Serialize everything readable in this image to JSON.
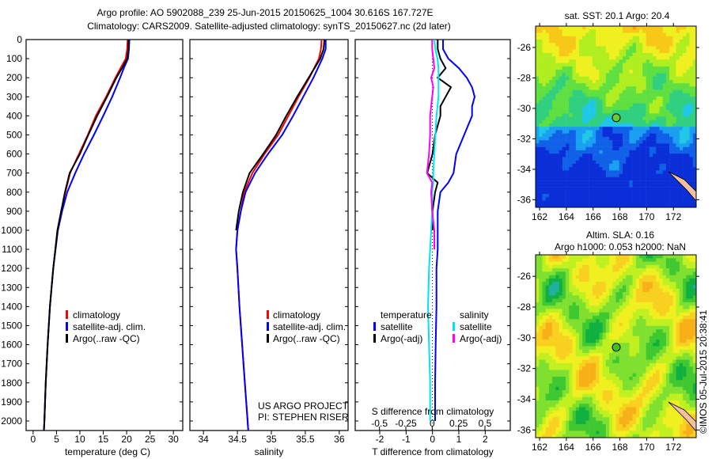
{
  "title": {
    "line1": "Argo profile: AO 5902088_239 25-Jun-2015 20150625_1004 30.616S 167.727E",
    "line2": "Climatology: CARS2009. Satellite-adjusted climatology: synTS_20150627.nc (2d later)"
  },
  "colors": {
    "climatology": "#ff0000",
    "satellite": "#0000ff",
    "argo": "#000000",
    "s_satellite": "#00e5ee",
    "s_argo": "#ff00ff"
  },
  "depth_ticks": [
    "0",
    "100",
    "200",
    "300",
    "400",
    "500",
    "600",
    "700",
    "800",
    "900",
    "1000",
    "1100",
    "1200",
    "1300",
    "1400",
    "1500",
    "1600",
    "1700",
    "1800",
    "1900",
    "2000"
  ],
  "legend": {
    "climatology": "climatology",
    "satellite": "satellite-adj. clim.",
    "argo": "Argo(..raw -QC)"
  },
  "credits": {
    "project": "US ARGO PROJECT",
    "pi": "PI: STEPHEN RISER"
  },
  "diff_legend": {
    "temperature": "temperature",
    "salinity": "salinity",
    "t_sat": "satellite",
    "t_argo": "Argo(-adj)",
    "s_sat": "satellite",
    "s_argo": "Argo(-adj)"
  },
  "chart_data": [
    {
      "type": "line",
      "name": "temperature",
      "xlabel": "temperature (deg C)",
      "ylabel": "depth",
      "xlim": [
        -1.5,
        32
      ],
      "ylim": [
        0,
        2050
      ],
      "xticks": [
        "0",
        "5",
        "10",
        "15",
        "20",
        "25",
        "30"
      ],
      "depth": [
        0,
        50,
        100,
        150,
        200,
        300,
        400,
        500,
        600,
        700,
        800,
        900,
        1000,
        1200,
        1400,
        1600,
        1800,
        2000,
        2050
      ],
      "series": [
        {
          "name": "climatology",
          "values": [
            20.2,
            20.1,
            19.8,
            18.7,
            17.6,
            15.6,
            13.4,
            11.7,
            9.8,
            7.9,
            6.9,
            6.0,
            5.2,
            4.3,
            3.6,
            3.1,
            2.7,
            2.4,
            2.3
          ]
        },
        {
          "name": "satellite-adj. clim.",
          "values": [
            20.6,
            20.5,
            20.3,
            19.4,
            18.6,
            16.9,
            15.0,
            13.0,
            10.9,
            9.0,
            7.3,
            6.2,
            5.3,
            4.3,
            3.6,
            3.1,
            2.7,
            2.4,
            2.3
          ]
        },
        {
          "name": "Argo(..raw -QC)",
          "values": [
            20.4,
            20.4,
            20.1,
            19.0,
            17.8,
            15.8,
            13.7,
            11.8,
            10.0,
            7.8,
            6.8,
            6.0,
            5.2,
            4.3,
            3.6,
            3.1,
            2.7,
            2.4,
            2.3
          ]
        }
      ]
    },
    {
      "type": "line",
      "name": "salinity",
      "xlabel": "salinity",
      "ylabel": "depth",
      "xlim": [
        33.8,
        36.13
      ],
      "ylim": [
        0,
        2050
      ],
      "xticks": [
        "34",
        "34.5",
        "35",
        "35.5",
        "36"
      ],
      "depth": [
        0,
        50,
        100,
        200,
        300,
        400,
        500,
        600,
        700,
        800,
        900,
        1000,
        1100,
        1200,
        1400,
        1600,
        1800,
        2000,
        2050
      ],
      "series": [
        {
          "name": "climatology",
          "values": [
            35.74,
            35.73,
            35.7,
            35.56,
            35.4,
            35.25,
            35.1,
            34.9,
            34.72,
            34.6,
            34.55,
            34.5,
            34.48,
            34.5,
            34.53,
            34.57,
            34.61,
            34.65,
            34.66
          ]
        },
        {
          "name": "satellite-adj. clim.",
          "values": [
            35.8,
            35.8,
            35.75,
            35.62,
            35.47,
            35.32,
            35.16,
            34.95,
            34.76,
            34.62,
            34.55,
            34.5,
            34.48,
            34.5,
            34.53,
            34.57,
            34.61,
            34.65,
            34.66
          ]
        },
        {
          "name": "Argo(..raw -QC)",
          "values": [
            35.78,
            35.77,
            35.72,
            35.55,
            35.38,
            35.22,
            35.07,
            34.88,
            34.68,
            34.58,
            34.52,
            34.48
          ]
        }
      ]
    },
    {
      "type": "line",
      "name": "difference",
      "xlabel": "T difference from climatology",
      "x2label": "S difference from climatology",
      "xlim": [
        -2.93,
        2.95
      ],
      "x2lim": [
        -0.73,
        0.74
      ],
      "ylim": [
        0,
        2050
      ],
      "xticks": [
        "-2",
        "-1",
        "0",
        "1",
        "2"
      ],
      "x2ticks": [
        "-0.5",
        "-0.25",
        "0",
        "0.25",
        "0.5"
      ],
      "depth": [
        0,
        50,
        100,
        150,
        200,
        250,
        300,
        350,
        400,
        500,
        600,
        700,
        750,
        800,
        900,
        1000,
        1100,
        1200,
        1400,
        1600,
        1800,
        2000
      ],
      "series": [
        {
          "name": "T satellite",
          "axis": "T",
          "values": [
            0.4,
            0.4,
            0.6,
            1.0,
            1.3,
            1.5,
            1.6,
            1.5,
            1.5,
            1.2,
            0.9,
            0.8,
            0.6,
            0.3,
            0.2,
            0.2,
            0.2,
            0.15,
            0.15,
            0.12,
            0.1,
            0.1
          ]
        },
        {
          "name": "T Argo(-adj)",
          "axis": "T",
          "values": [
            0.2,
            0.2,
            0.3,
            0.5,
            0.2,
            0.7,
            0.5,
            0.3,
            0.3,
            0.1,
            0.0,
            -0.2,
            0.2,
            0.1,
            0.0,
            0.0
          ]
        },
        {
          "name": "S satellite",
          "axis": "S",
          "values": [
            0.02,
            0.03,
            0.05,
            0.06,
            0.06,
            0.06,
            0.06,
            0.05,
            0.04,
            0.03,
            0.02,
            0.01,
            0.01,
            0.0,
            0.0,
            -0.01,
            -0.02,
            -0.03,
            -0.04,
            -0.03,
            -0.02,
            -0.02
          ]
        },
        {
          "name": "S Argo(-adj)",
          "axis": "S",
          "values": [
            0.0,
            0.0,
            0.01,
            0.02,
            -0.01,
            0.01,
            0.0,
            -0.01,
            -0.02,
            -0.02,
            -0.03,
            -0.05,
            0.0,
            -0.01,
            0.0,
            0.02,
            0.02
          ]
        }
      ]
    },
    {
      "type": "heatmap",
      "name": "sst_map",
      "title": "sat. SST: 20.1 Argo: 20.4",
      "xlim": [
        161.7,
        173.7
      ],
      "ylim": [
        -36.5,
        -24.6
      ],
      "xticks": [
        "162",
        "164",
        "166",
        "168",
        "170",
        "172"
      ],
      "yticks": [
        "-26",
        "-28",
        "-30",
        "-32",
        "-34",
        "-36"
      ],
      "argo_position": {
        "lon": 167.727,
        "lat": -30.616
      }
    },
    {
      "type": "heatmap",
      "name": "sla_map",
      "title": "Altim. SLA: 0.16",
      "subtitle": "Argo h1000: 0.053 h2000: NaN",
      "xlim": [
        161.7,
        173.7
      ],
      "ylim": [
        -36.5,
        -24.6
      ],
      "xticks": [
        "162",
        "164",
        "166",
        "168",
        "170",
        "172"
      ],
      "yticks": [
        "-26",
        "-28",
        "-30",
        "-32",
        "-34",
        "-36"
      ],
      "argo_position": {
        "lon": 167.727,
        "lat": -30.616
      }
    }
  ],
  "timestamp": "©IMOS 05-Jul-2015 20:38:41"
}
